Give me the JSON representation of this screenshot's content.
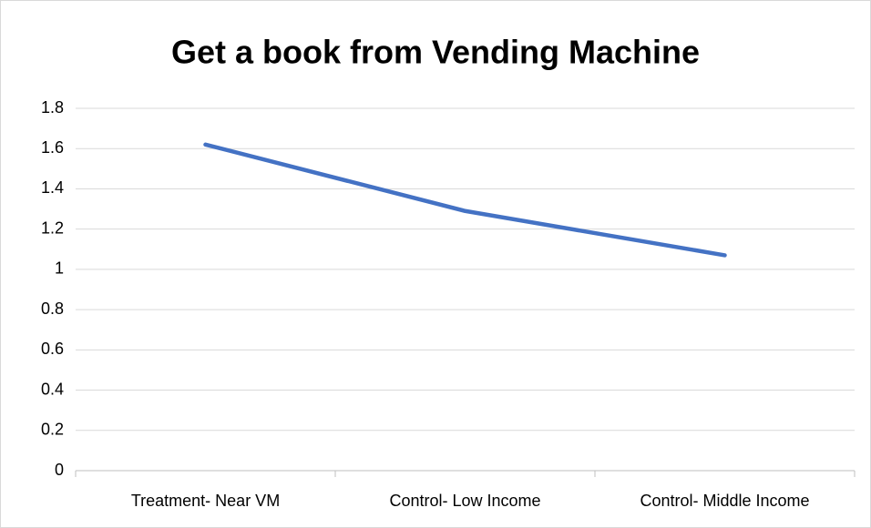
{
  "chart_data": {
    "type": "line",
    "title": "Get a book from Vending Machine",
    "categories": [
      "Treatment- Near VM",
      "Control- Low Income",
      "Control- Middle Income"
    ],
    "series": [
      {
        "name": "Series1",
        "color": "#4472c4",
        "values": [
          1.62,
          1.29,
          1.07
        ]
      }
    ],
    "ylim": [
      0,
      1.8
    ],
    "yticks": [
      0,
      0.2,
      0.4,
      0.6,
      0.8,
      1,
      1.2,
      1.4,
      1.6,
      1.8
    ],
    "grid": true,
    "legend": false
  }
}
